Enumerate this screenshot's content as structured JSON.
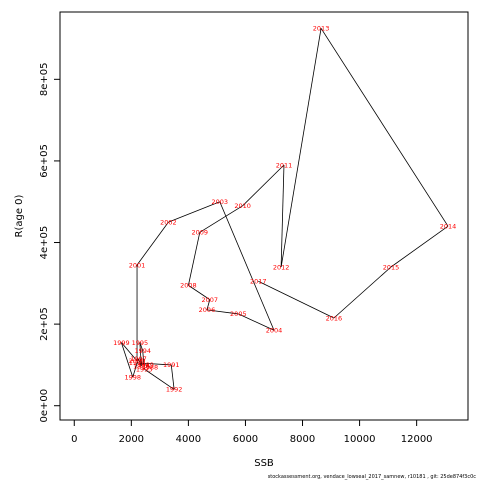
{
  "chart_data": {
    "type": "line",
    "xlabel": "SSB",
    "ylabel": "R(age 0)",
    "xlim": [
      -500,
      13800
    ],
    "ylim": [
      -35000,
      965000
    ],
    "x_ticks": [
      {
        "value": 0,
        "label": "0"
      },
      {
        "value": 2000,
        "label": "2000"
      },
      {
        "value": 4000,
        "label": "4000"
      },
      {
        "value": 6000,
        "label": "6000"
      },
      {
        "value": 8000,
        "label": "8000"
      },
      {
        "value": 10000,
        "label": "10000"
      },
      {
        "value": 12000,
        "label": "12000"
      }
    ],
    "y_ticks": [
      {
        "value": 0,
        "label": "0e+00"
      },
      {
        "value": 200000,
        "label": "2e+05"
      },
      {
        "value": 400000,
        "label": "4e+05"
      },
      {
        "value": 600000,
        "label": "6e+05"
      },
      {
        "value": 800000,
        "label": "8e+05"
      }
    ],
    "line_color": "#000000",
    "label_color": "#ff0000",
    "grid": false,
    "points": [
      {
        "year": "1988",
        "x": 2650,
        "y": 95000
      },
      {
        "year": "1989",
        "x": 2500,
        "y": 100000
      },
      {
        "year": "1990",
        "x": 2200,
        "y": 105000
      },
      {
        "year": "1991",
        "x": 3400,
        "y": 100000
      },
      {
        "year": "1992",
        "x": 3500,
        "y": 40000
      },
      {
        "year": "1993",
        "x": 2450,
        "y": 90000
      },
      {
        "year": "1994",
        "x": 2400,
        "y": 135000
      },
      {
        "year": "1995",
        "x": 2300,
        "y": 155000
      },
      {
        "year": "1996",
        "x": 2350,
        "y": 97000
      },
      {
        "year": "1997",
        "x": 2250,
        "y": 115000
      },
      {
        "year": "1998",
        "x": 2050,
        "y": 70000
      },
      {
        "year": "1999",
        "x": 1650,
        "y": 155000
      },
      {
        "year": "2000",
        "x": 2200,
        "y": 110000
      },
      {
        "year": "2001",
        "x": 2200,
        "y": 345000
      },
      {
        "year": "2002",
        "x": 3300,
        "y": 450000
      },
      {
        "year": "2003",
        "x": 5100,
        "y": 500000
      },
      {
        "year": "2004",
        "x": 7000,
        "y": 185000
      },
      {
        "year": "2005",
        "x": 5750,
        "y": 225000
      },
      {
        "year": "2006",
        "x": 4650,
        "y": 235000
      },
      {
        "year": "2007",
        "x": 4750,
        "y": 260000
      },
      {
        "year": "2008",
        "x": 4000,
        "y": 295000
      },
      {
        "year": "2009",
        "x": 4400,
        "y": 425000
      },
      {
        "year": "2010",
        "x": 5900,
        "y": 490000
      },
      {
        "year": "2011",
        "x": 7350,
        "y": 590000
      },
      {
        "year": "2012",
        "x": 7250,
        "y": 340000
      },
      {
        "year": "2013",
        "x": 8650,
        "y": 925000
      },
      {
        "year": "2014",
        "x": 13100,
        "y": 440000
      },
      {
        "year": "2015",
        "x": 11100,
        "y": 340000
      },
      {
        "year": "2016",
        "x": 9100,
        "y": 215000
      },
      {
        "year": "2017",
        "x": 6450,
        "y": 305000
      }
    ]
  },
  "footer_text": "stockassessment.org,  vendace_lowseal_2017_samnew,  r10181 ,  git: 25de874f3c0c"
}
